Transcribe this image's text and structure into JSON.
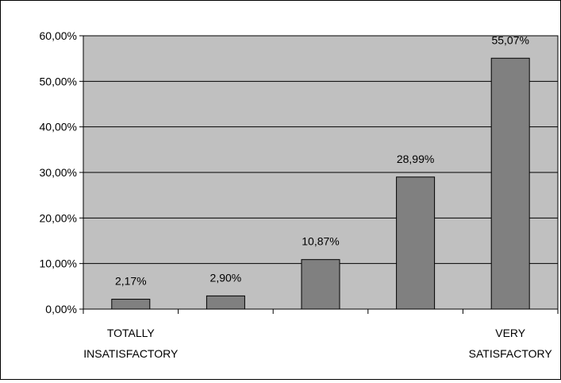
{
  "chart_data": {
    "type": "bar",
    "categories": [
      "TOTALLY INSATISFACTORY",
      "",
      "",
      "",
      "VERY SATISFACTORY"
    ],
    "category_label_lines": [
      [
        "TOTALLY",
        "INSATISFACTORY"
      ],
      [],
      [],
      [],
      [
        "VERY",
        "SATISFACTORY"
      ]
    ],
    "values": [
      2.17,
      2.9,
      10.87,
      28.99,
      55.07
    ],
    "data_labels": [
      "2,17%",
      "2,90%",
      "10,87%",
      "28,99%",
      "55,07%"
    ],
    "y_ticks": [
      0,
      10,
      20,
      30,
      40,
      50,
      60
    ],
    "y_tick_labels": [
      "0,00%",
      "10,00%",
      "20,00%",
      "30,00%",
      "40,00%",
      "50,00%",
      "60,00%"
    ],
    "ylim": [
      0,
      60
    ],
    "grid": true,
    "colors": {
      "plot_background": "#c0c0c0",
      "bar_fill": "#808080",
      "bar_stroke": "#000000",
      "gridline": "#000000"
    }
  }
}
